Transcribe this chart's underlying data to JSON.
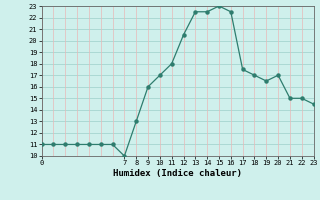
{
  "hours": [
    0,
    1,
    2,
    3,
    4,
    5,
    6,
    7,
    8,
    9,
    10,
    11,
    12,
    13,
    14,
    15,
    16,
    17,
    18,
    19,
    20,
    21,
    22,
    23
  ],
  "values": [
    11,
    11,
    11,
    11,
    11,
    11,
    11,
    10,
    13,
    16,
    17,
    18,
    20.5,
    22.5,
    22.5,
    23,
    22.5,
    17.5,
    17,
    16.5,
    17,
    15,
    15,
    14.5
  ],
  "xlabel": "Humidex (Indice chaleur)",
  "line_color": "#2e7d6e",
  "bg_color": "#cff0ec",
  "hgrid_color": "#9ecfca",
  "vgrid_color": "#e8b8b8",
  "ylim": [
    10,
    23
  ],
  "xlim": [
    0,
    23
  ],
  "yticks": [
    10,
    11,
    12,
    13,
    14,
    15,
    16,
    17,
    18,
    19,
    20,
    21,
    22,
    23
  ],
  "xticks": [
    0,
    7,
    8,
    9,
    10,
    11,
    12,
    13,
    14,
    15,
    16,
    17,
    18,
    19,
    20,
    21,
    22,
    23
  ],
  "all_xticks": [
    0,
    1,
    2,
    3,
    4,
    5,
    6,
    7,
    8,
    9,
    10,
    11,
    12,
    13,
    14,
    15,
    16,
    17,
    18,
    19,
    20,
    21,
    22,
    23
  ]
}
